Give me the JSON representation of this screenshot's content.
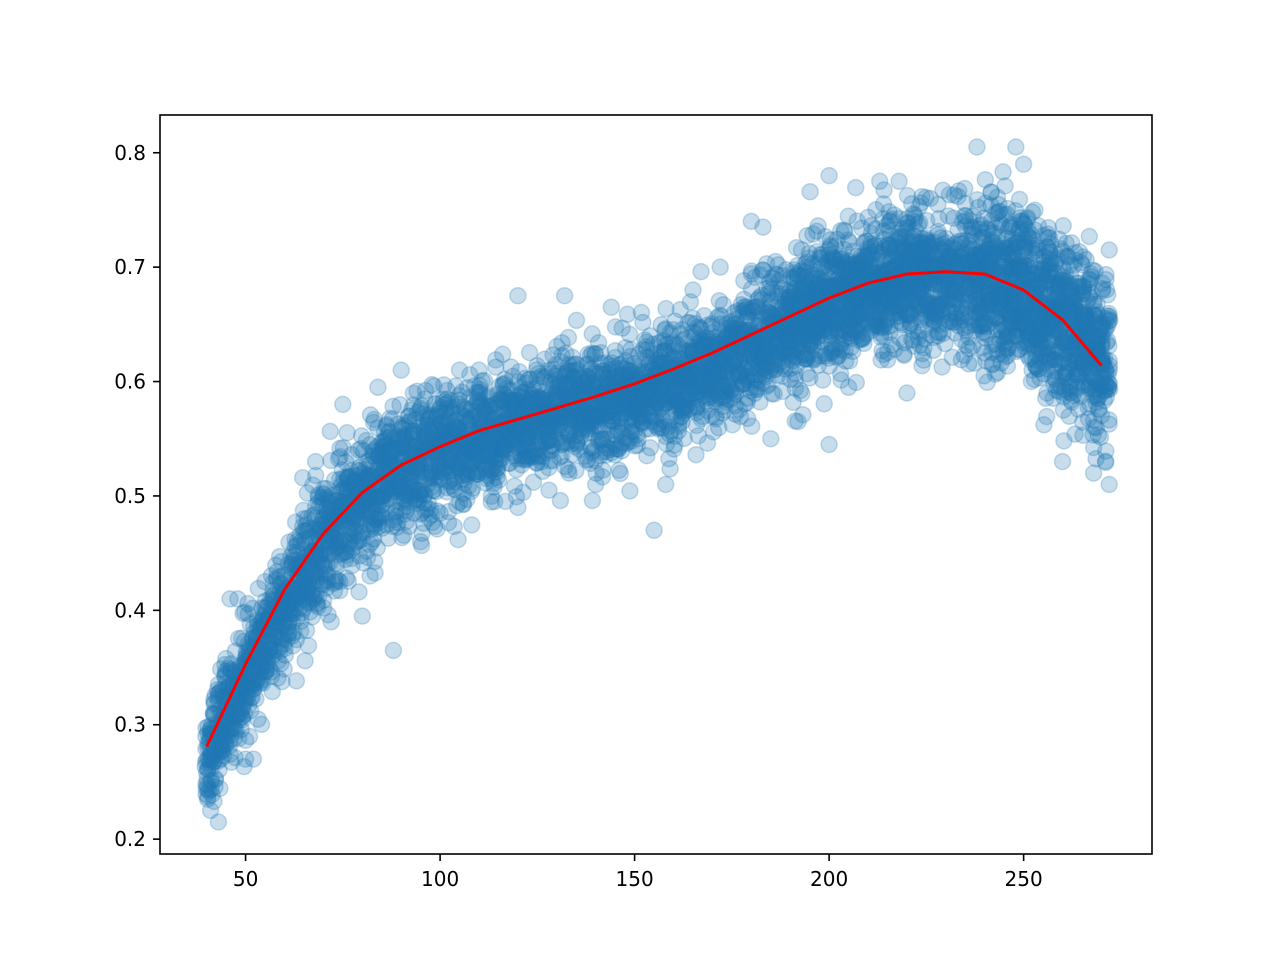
{
  "chart_data": {
    "type": "scatter",
    "title": "",
    "xlabel": "",
    "ylabel": "",
    "xlim": [
      28,
      283
    ],
    "ylim": [
      0.187,
      0.833
    ],
    "xticks": [
      50,
      100,
      150,
      200,
      250
    ],
    "yticks": [
      0.2,
      0.3,
      0.4,
      0.5,
      0.6,
      0.7,
      0.8
    ],
    "xtick_labels": [
      "50",
      "100",
      "150",
      "200",
      "250"
    ],
    "ytick_labels": [
      "0.2",
      "0.3",
      "0.4",
      "0.5",
      "0.6",
      "0.7",
      "0.8"
    ],
    "grid": false,
    "legend": "none",
    "series": [
      {
        "kind": "scatter",
        "color": "#1f77b4",
        "alpha": 0.25,
        "x_range": [
          40,
          272
        ],
        "trend_points": [
          [
            40,
            0.27
          ],
          [
            45,
            0.31
          ],
          [
            50,
            0.34
          ],
          [
            55,
            0.37
          ],
          [
            60,
            0.4
          ],
          [
            65,
            0.43
          ],
          [
            70,
            0.46
          ],
          [
            75,
            0.48
          ],
          [
            80,
            0.5
          ],
          [
            85,
            0.51
          ],
          [
            90,
            0.52
          ],
          [
            95,
            0.53
          ],
          [
            100,
            0.54
          ],
          [
            110,
            0.55
          ],
          [
            120,
            0.56
          ],
          [
            130,
            0.57
          ],
          [
            140,
            0.58
          ],
          [
            150,
            0.59
          ],
          [
            160,
            0.6
          ],
          [
            170,
            0.61
          ],
          [
            180,
            0.63
          ],
          [
            190,
            0.65
          ],
          [
            200,
            0.67
          ],
          [
            210,
            0.68
          ],
          [
            220,
            0.69
          ],
          [
            230,
            0.69
          ],
          [
            240,
            0.69
          ],
          [
            250,
            0.68
          ],
          [
            260,
            0.65
          ],
          [
            270,
            0.62
          ],
          [
            272,
            0.61
          ]
        ],
        "outliers": [
          [
            41,
            0.225
          ],
          [
            43,
            0.215
          ],
          [
            45,
            0.345
          ],
          [
            46,
            0.41
          ],
          [
            48,
            0.41
          ],
          [
            50,
            0.27
          ],
          [
            52,
            0.27
          ],
          [
            55,
            0.425
          ],
          [
            58,
            0.395
          ],
          [
            62,
            0.44
          ],
          [
            65,
            0.48
          ],
          [
            68,
            0.53
          ],
          [
            72,
            0.39
          ],
          [
            75,
            0.58
          ],
          [
            80,
            0.395
          ],
          [
            82,
            0.43
          ],
          [
            84,
            0.595
          ],
          [
            88,
            0.365
          ],
          [
            90,
            0.61
          ],
          [
            95,
            0.46
          ],
          [
            100,
            0.485
          ],
          [
            105,
            0.61
          ],
          [
            110,
            0.61
          ],
          [
            120,
            0.675
          ],
          [
            120,
            0.49
          ],
          [
            128,
            0.505
          ],
          [
            132,
            0.675
          ],
          [
            140,
            0.51
          ],
          [
            144,
            0.665
          ],
          [
            155,
            0.47
          ],
          [
            158,
            0.51
          ],
          [
            165,
            0.68
          ],
          [
            172,
            0.7
          ],
          [
            180,
            0.74
          ],
          [
            183,
            0.735
          ],
          [
            185,
            0.55
          ],
          [
            192,
            0.565
          ],
          [
            200,
            0.78
          ],
          [
            200,
            0.545
          ],
          [
            205,
            0.595
          ],
          [
            213,
            0.775
          ],
          [
            218,
            0.775
          ],
          [
            220,
            0.59
          ],
          [
            226,
            0.76
          ],
          [
            228,
            0.64
          ],
          [
            238,
            0.805
          ],
          [
            240,
            0.625
          ],
          [
            248,
            0.805
          ],
          [
            250,
            0.79
          ],
          [
            252,
            0.6
          ],
          [
            256,
            0.59
          ],
          [
            260,
            0.53
          ],
          [
            268,
            0.52
          ],
          [
            272,
            0.715
          ],
          [
            272,
            0.51
          ]
        ]
      },
      {
        "kind": "line",
        "color": "#ff0000",
        "x": [
          40,
          50,
          60,
          70,
          80,
          90,
          100,
          110,
          120,
          130,
          140,
          150,
          160,
          170,
          180,
          190,
          200,
          210,
          220,
          230,
          240,
          250,
          260,
          270
        ],
        "y": [
          0.281,
          0.353,
          0.418,
          0.467,
          0.503,
          0.527,
          0.543,
          0.557,
          0.567,
          0.577,
          0.587,
          0.598,
          0.611,
          0.625,
          0.641,
          0.657,
          0.673,
          0.686,
          0.694,
          0.696,
          0.694,
          0.68,
          0.654,
          0.614
        ]
      }
    ]
  }
}
